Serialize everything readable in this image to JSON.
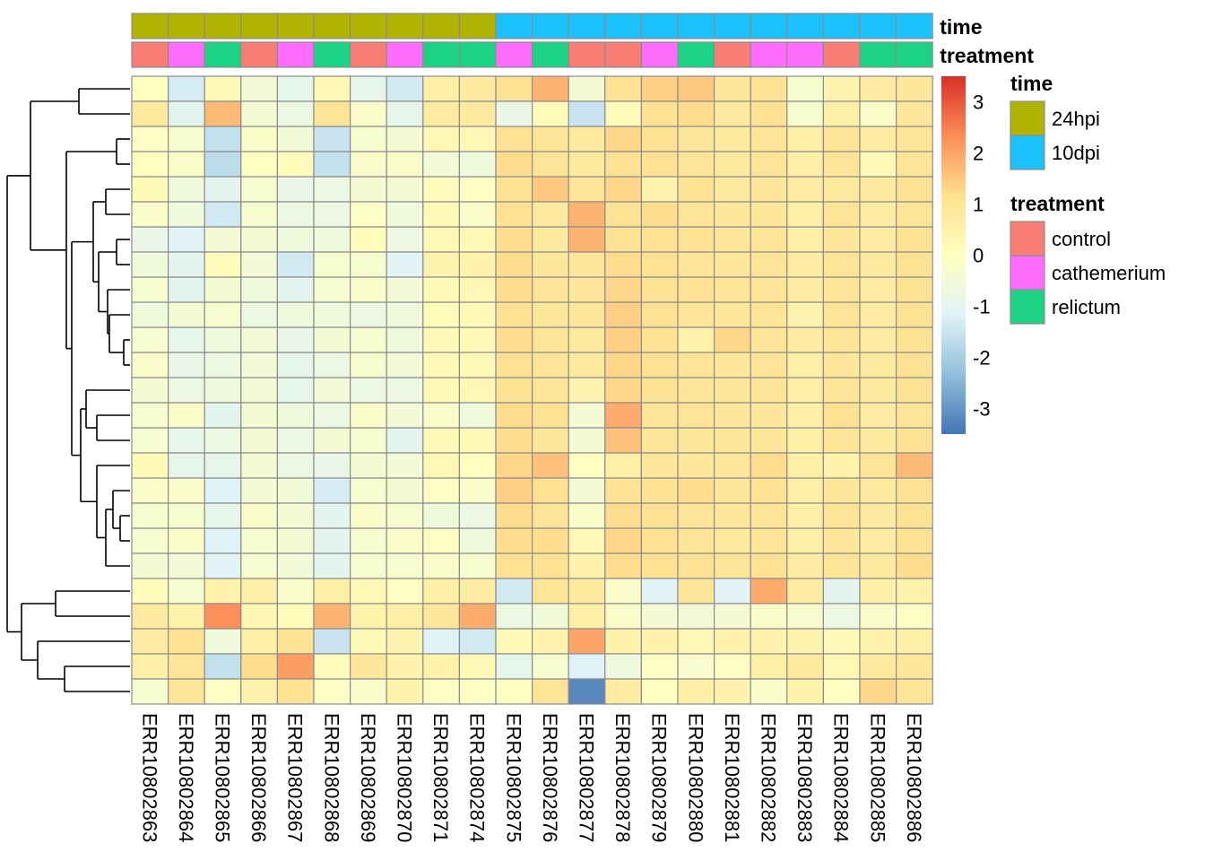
{
  "chart_data": {
    "type": "heatmap",
    "columns": [
      "ERR10802863",
      "ERR10802864",
      "ERR10802865",
      "ERR10802866",
      "ERR10802867",
      "ERR10802868",
      "ERR10802869",
      "ERR10802870",
      "ERR10802871",
      "ERR10802874",
      "ERR10802875",
      "ERR10802876",
      "ERR10802877",
      "ERR10802878",
      "ERR10802879",
      "ERR10802880",
      "ERR10802881",
      "ERR10802882",
      "ERR10802883",
      "ERR10802884",
      "ERR10802885",
      "ERR10802886"
    ],
    "annotations": {
      "time": [
        "24hpi",
        "24hpi",
        "24hpi",
        "24hpi",
        "24hpi",
        "24hpi",
        "24hpi",
        "24hpi",
        "24hpi",
        "24hpi",
        "10dpi",
        "10dpi",
        "10dpi",
        "10dpi",
        "10dpi",
        "10dpi",
        "10dpi",
        "10dpi",
        "10dpi",
        "10dpi",
        "10dpi",
        "10dpi"
      ],
      "treatment": [
        "control",
        "cathemerium",
        "relictum",
        "control",
        "cathemerium",
        "relictum",
        "control",
        "cathemerium",
        "relictum",
        "relictum",
        "cathemerium",
        "relictum",
        "control",
        "control",
        "cathemerium",
        "relictum",
        "control",
        "cathemerium",
        "cathemerium",
        "control",
        "relictum",
        "relictum"
      ]
    },
    "annotation_labels": {
      "time": "time",
      "treatment": "treatment"
    },
    "legend": {
      "time": {
        "title": "time",
        "levels": [
          "24hpi",
          "10dpi"
        ],
        "colors": [
          "#b2b404",
          "#1ac1fb"
        ]
      },
      "treatment": {
        "title": "treatment",
        "levels": [
          "control",
          "cathemerium",
          "relictum"
        ],
        "colors": [
          "#f87d74",
          "#fd6cfc",
          "#1cd383"
        ]
      }
    },
    "color_scale": {
      "ticks": [
        "3",
        "2",
        "1",
        "0",
        "-1",
        "-2",
        "-3"
      ],
      "range": [
        -3.5,
        3.5
      ],
      "colors": [
        "#4575b4",
        "#91bfdb",
        "#e0f3f8",
        "#ffffbf",
        "#fee090",
        "#fc8d59",
        "#d73027"
      ]
    },
    "values": [
      [
        0,
        -1.3,
        0.2,
        -0.5,
        -0.9,
        0.3,
        -0.9,
        -1.4,
        0.6,
        0.8,
        1.1,
        1.8,
        -0.4,
        1.1,
        1.4,
        1.5,
        0.9,
        1.1,
        -0.3,
        0.4,
        0.7,
        0.9
      ],
      [
        0.8,
        -1,
        1.7,
        -0.4,
        -0.7,
        1,
        -0.2,
        -0.9,
        0.7,
        0.8,
        -0.8,
        0.1,
        -1.5,
        0.1,
        1.1,
        1.2,
        0.8,
        1.1,
        -0.3,
        0.6,
        -0.2,
        0.9
      ],
      [
        -0.1,
        -0.3,
        -1.6,
        -0.2,
        -0.5,
        -1.5,
        -0.3,
        -0.4,
        0.3,
        0.3,
        1.1,
        1,
        0.8,
        1.3,
        1.1,
        0.9,
        0.8,
        1,
        0.6,
        1,
        0.7,
        1
      ],
      [
        0,
        -0.2,
        -1.7,
        0,
        0.1,
        -1.6,
        -0.2,
        -0.2,
        -0.5,
        -0.6,
        1.2,
        1,
        0.8,
        1.1,
        1.1,
        1,
        0.8,
        1,
        0.6,
        1,
        0.2,
        1
      ],
      [
        0.2,
        -0.6,
        -1,
        -0.3,
        -0.8,
        -0.7,
        -0.4,
        -0.4,
        0.1,
        -0.1,
        1.1,
        1.5,
        1,
        1.3,
        0.4,
        1.1,
        0.8,
        0.9,
        0.7,
        0.8,
        0.8,
        1.1
      ],
      [
        -0.2,
        -0.6,
        -1.4,
        -0.3,
        -0.7,
        -0.7,
        -0.1,
        -0.6,
        0.2,
        -0.2,
        1.1,
        0.8,
        1.8,
        1.1,
        1.2,
        1,
        0.9,
        0.9,
        0.6,
        1,
        0.7,
        1
      ],
      [
        -0.8,
        -1.1,
        -0.5,
        -0.4,
        -0.6,
        -0.6,
        0.1,
        -0.7,
        0.3,
        0.3,
        1.2,
        0.8,
        1.8,
        1.1,
        1.1,
        1.1,
        0.9,
        1,
        0.6,
        0.9,
        0.7,
        1.1
      ],
      [
        -0.6,
        -1,
        0.1,
        -0.5,
        -1.4,
        -0.3,
        -0.3,
        -1.1,
        0.4,
        0.5,
        1.2,
        0.9,
        0.9,
        1.2,
        1.1,
        1,
        0.9,
        1,
        0.7,
        1,
        0.8,
        1.1
      ],
      [
        -0.3,
        -1,
        -0.4,
        -0.6,
        -1,
        -0.3,
        -0.2,
        -0.5,
        0.2,
        0.3,
        1.2,
        1,
        0.9,
        1.3,
        1.1,
        1.1,
        1,
        1,
        0.7,
        1,
        0.7,
        1.1
      ],
      [
        -0.6,
        -0.4,
        -0.3,
        -0.7,
        -0.6,
        -0.6,
        -0.7,
        -0.6,
        0.1,
        0.2,
        1.1,
        0.9,
        0.9,
        1.4,
        1.1,
        1,
        0.9,
        1,
        0.4,
        1,
        0.7,
        1.1
      ],
      [
        -0.3,
        -0.9,
        -0.6,
        -0.5,
        -0.8,
        -0.4,
        -0.3,
        -0.6,
        0.2,
        0.2,
        1.2,
        1,
        0.8,
        1.4,
        1.1,
        0.5,
        1.3,
        1,
        0.7,
        1,
        0.7,
        1.1
      ],
      [
        -0.2,
        -0.8,
        -0.7,
        -0.5,
        -0.9,
        -0.7,
        -0.3,
        -0.5,
        0.2,
        0.2,
        1.1,
        1,
        0.8,
        1.3,
        1.1,
        1,
        0.9,
        1,
        0.6,
        0.9,
        0.8,
        1.1
      ],
      [
        -0.4,
        -0.7,
        -0.6,
        -0.5,
        -0.9,
        -0.5,
        -0.7,
        -0.7,
        0.2,
        0.3,
        1.1,
        1,
        0.4,
        1.3,
        1.1,
        1,
        0.9,
        1,
        0.6,
        1,
        0.8,
        1.1
      ],
      [
        -0.3,
        -0.2,
        -1,
        -0.4,
        -0.6,
        -0.7,
        -0.2,
        -0.5,
        -0.2,
        -0.6,
        1.2,
        1.1,
        -0.4,
        1.9,
        1,
        1,
        0.9,
        0.9,
        0.6,
        1.1,
        0.7,
        1
      ],
      [
        -0.3,
        -0.9,
        -0.7,
        -0.4,
        -0.7,
        -0.4,
        -0.3,
        -1,
        0.2,
        0.2,
        1.2,
        0.9,
        -0.4,
        1.6,
        1,
        0.9,
        0.9,
        0.9,
        0.6,
        1,
        0.8,
        1.1
      ],
      [
        0.2,
        -0.9,
        -0.9,
        -0.4,
        -0.7,
        -0.8,
        -0.4,
        -0.5,
        0.3,
        0,
        1.3,
        1.6,
        0,
        0.6,
        0.9,
        0.9,
        0.9,
        1.2,
        0.6,
        0.5,
        1,
        1.7
      ],
      [
        -0.2,
        -0.2,
        -1.2,
        -0.4,
        -0.5,
        -1.3,
        -0.3,
        -0.4,
        -0.1,
        -0.2,
        1.4,
        1.1,
        -0.4,
        1.1,
        1.1,
        1.2,
        0.9,
        1.1,
        0.6,
        0.9,
        0.8,
        1.1
      ],
      [
        -0.3,
        -0.3,
        -0.9,
        -0.2,
        -0.4,
        -1,
        -0.2,
        -0.3,
        -0.6,
        -0.7,
        1.2,
        1,
        -0.2,
        1.2,
        1.1,
        1,
        0.9,
        1,
        0.6,
        1,
        0.8,
        1.1
      ],
      [
        -0.3,
        -0.2,
        -1.2,
        -0.3,
        -0.4,
        -1,
        -0.3,
        -0.2,
        -0.1,
        -0.6,
        1.2,
        1.2,
        0.3,
        1.3,
        1.1,
        1,
        0.8,
        1,
        0.6,
        0.9,
        0.7,
        1.1
      ],
      [
        -0.4,
        -0.5,
        -1.1,
        -0.3,
        -0.5,
        -1,
        -0.3,
        -0.3,
        -0.2,
        -0.3,
        1.1,
        1.1,
        0.5,
        1.2,
        1.1,
        1.1,
        1,
        1.1,
        0.7,
        1,
        0.8,
        1.2
      ],
      [
        0.1,
        -0.3,
        0.5,
        0.6,
        -0.2,
        0.6,
        0.3,
        -0.1,
        0.6,
        0.7,
        -1.4,
        1,
        0.8,
        -0.2,
        -1.1,
        0.9,
        -1.1,
        1.9,
        0.7,
        -1,
        0.6,
        0.5
      ],
      [
        0.8,
        0.5,
        2.3,
        0.3,
        0.1,
        1.8,
        0.5,
        0.6,
        0.9,
        1.9,
        -0.7,
        -0.5,
        0.6,
        -0.2,
        -0.4,
        -0.5,
        -0.4,
        -0.2,
        -0.3,
        -0.7,
        -0.2,
        -0.1
      ],
      [
        0.7,
        1.1,
        -0.6,
        0.6,
        1.1,
        -1.5,
        0.2,
        0.4,
        -1.2,
        -1.4,
        0.2,
        0.4,
        2,
        0.5,
        0.5,
        0.3,
        0.5,
        0.5,
        0.4,
        0.2,
        0.5,
        0.6
      ],
      [
        0.6,
        1,
        -1.6,
        1.2,
        2.1,
        0.1,
        0.9,
        0.5,
        0.5,
        0.2,
        -0.9,
        -0.3,
        -1.2,
        -0.6,
        -0.1,
        -0.3,
        -0.1,
        0.6,
        0.8,
        0.3,
        0.8,
        0.9
      ],
      [
        -0.3,
        1,
        -0.1,
        0.5,
        1.1,
        -0.1,
        -0.2,
        0.5,
        -0.1,
        -0.1,
        0,
        1,
        -3.2,
        0.7,
        0,
        0.6,
        0.5,
        -0.2,
        0.5,
        0,
        1.3,
        1
      ]
    ]
  }
}
